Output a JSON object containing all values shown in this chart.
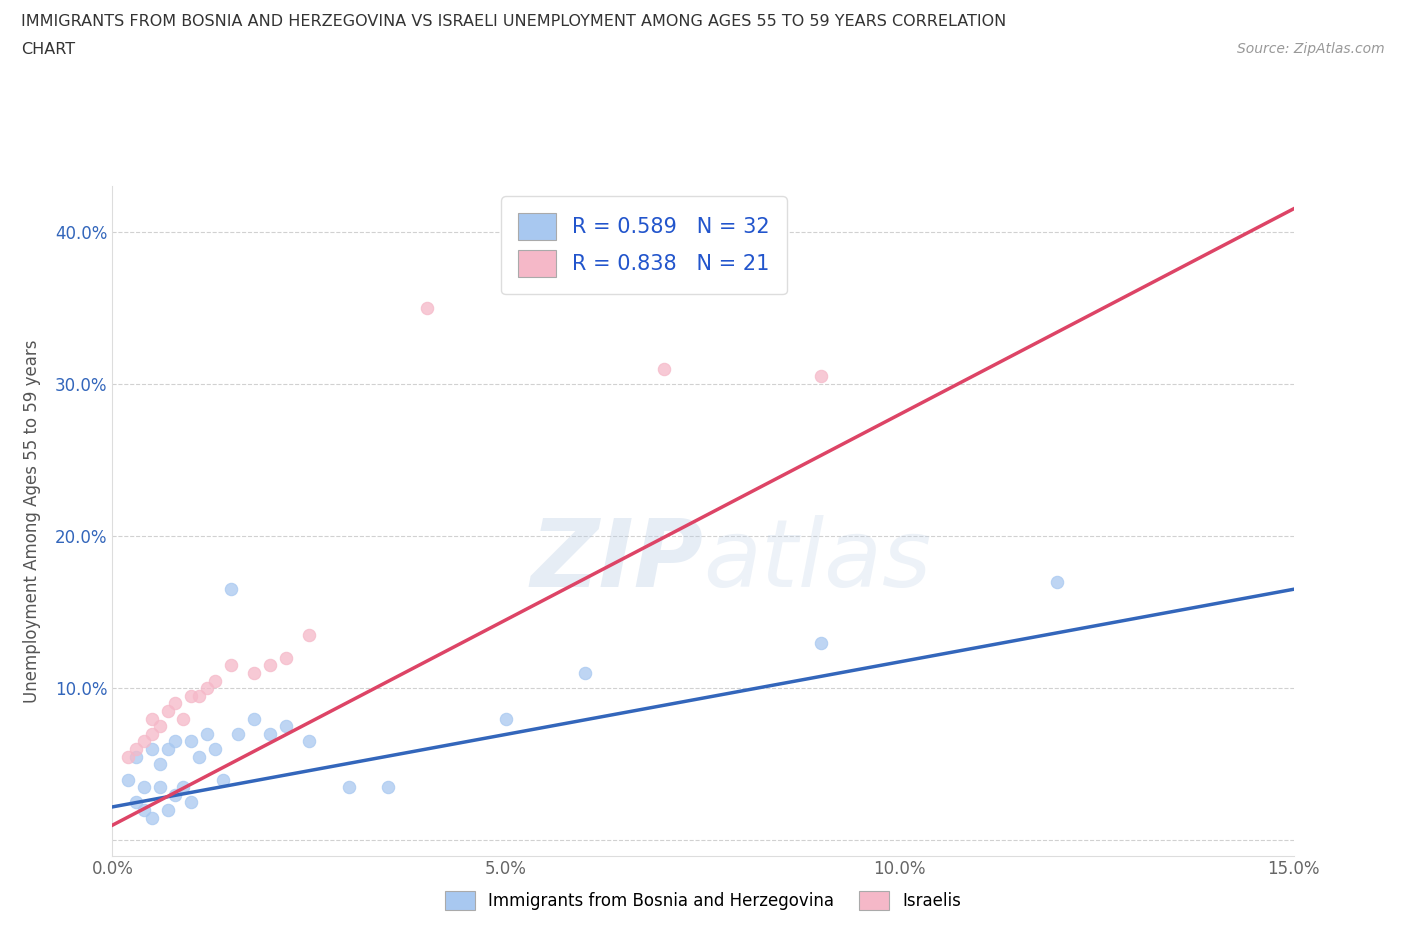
{
  "title_line1": "IMMIGRANTS FROM BOSNIA AND HERZEGOVINA VS ISRAELI UNEMPLOYMENT AMONG AGES 55 TO 59 YEARS CORRELATION",
  "title_line2": "CHART",
  "source": "Source: ZipAtlas.com",
  "ylabel": "Unemployment Among Ages 55 to 59 years",
  "xlim": [
    0.0,
    0.15
  ],
  "ylim": [
    -0.01,
    0.43
  ],
  "xticks": [
    0.0,
    0.05,
    0.1,
    0.15
  ],
  "xtick_labels": [
    "0.0%",
    "5.0%",
    "10.0%",
    "15.0%"
  ],
  "yticks": [
    0.0,
    0.1,
    0.2,
    0.3,
    0.4
  ],
  "ytick_labels": [
    "",
    "10.0%",
    "20.0%",
    "30.0%",
    "40.0%"
  ],
  "blue_color": "#a8c8f0",
  "pink_color": "#f5b8c8",
  "blue_line_color": "#3366bb",
  "pink_line_color": "#dd4466",
  "legend_blue_label": "R = 0.589   N = 32",
  "legend_pink_label": "R = 0.838   N = 21",
  "watermark_zip": "ZIP",
  "watermark_atlas": "atlas",
  "blue_scatter_x": [
    0.002,
    0.003,
    0.003,
    0.004,
    0.004,
    0.005,
    0.005,
    0.006,
    0.006,
    0.007,
    0.007,
    0.008,
    0.008,
    0.009,
    0.01,
    0.01,
    0.011,
    0.012,
    0.013,
    0.014,
    0.015,
    0.016,
    0.018,
    0.02,
    0.022,
    0.025,
    0.03,
    0.035,
    0.05,
    0.06,
    0.09,
    0.12
  ],
  "blue_scatter_y": [
    0.04,
    0.025,
    0.055,
    0.02,
    0.035,
    0.015,
    0.06,
    0.035,
    0.05,
    0.02,
    0.06,
    0.03,
    0.065,
    0.035,
    0.025,
    0.065,
    0.055,
    0.07,
    0.06,
    0.04,
    0.165,
    0.07,
    0.08,
    0.07,
    0.075,
    0.065,
    0.035,
    0.035,
    0.08,
    0.11,
    0.13,
    0.17
  ],
  "pink_scatter_x": [
    0.002,
    0.003,
    0.004,
    0.005,
    0.005,
    0.006,
    0.007,
    0.008,
    0.009,
    0.01,
    0.011,
    0.012,
    0.013,
    0.015,
    0.018,
    0.02,
    0.022,
    0.025,
    0.04,
    0.07,
    0.09
  ],
  "pink_scatter_y": [
    0.055,
    0.06,
    0.065,
    0.07,
    0.08,
    0.075,
    0.085,
    0.09,
    0.08,
    0.095,
    0.095,
    0.1,
    0.105,
    0.115,
    0.11,
    0.115,
    0.12,
    0.135,
    0.35,
    0.31,
    0.305
  ],
  "blue_line_x": [
    0.0,
    0.15
  ],
  "blue_line_y": [
    0.022,
    0.165
  ],
  "pink_line_x": [
    0.0,
    0.15
  ],
  "pink_line_y": [
    0.01,
    0.415
  ],
  "legend_bottom_labels": [
    "Immigrants from Bosnia and Herzegovina",
    "Israelis"
  ],
  "grid_color": "#cccccc",
  "bg_color": "#ffffff"
}
